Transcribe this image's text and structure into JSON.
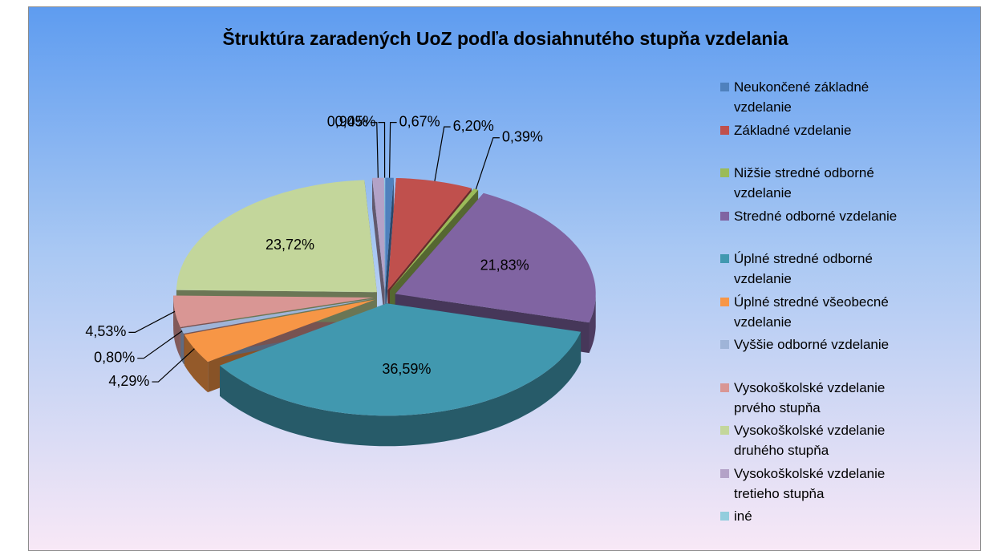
{
  "chart_data": {
    "type": "pie3d",
    "title": "Štruktúra zaradených UoZ podľa dosiahnutého stupňa vzdelania",
    "categories": [
      "Neukončené základné vzdelanie",
      "Základné vzdelanie",
      "Nižšie stredné odborné vzdelanie",
      "Stredné odborné vzdelanie",
      "Úplné stredné odborné vzdelanie",
      "Úplné stredné všeobecné vzdelanie",
      "Vyššie odborné vzdelanie",
      "Vysokoškolské vzdelanie prvého stupňa",
      "Vysokoškolské vzdelanie druhého stupňa",
      "Vysokoškolské vzdelanie tretieho stupňa",
      "iné"
    ],
    "values": [
      0.67,
      6.2,
      0.39,
      21.83,
      36.59,
      4.29,
      0.8,
      4.53,
      23.72,
      0.94,
      0.05
    ],
    "value_labels": [
      "0,67%",
      "6,20%",
      "0,39%",
      "21,83%",
      "36,59%",
      "4,29%",
      "0,80%",
      "4,53%",
      "23,72%",
      "0,94%",
      "0,05%"
    ],
    "colors": [
      "#4f81bd",
      "#c0504d",
      "#9bbb59",
      "#8064a2",
      "#4198af",
      "#f79646",
      "#9fb4d8",
      "#d99694",
      "#c3d69b",
      "#b3a2c7",
      "#93cddd"
    ],
    "legend": "right"
  }
}
